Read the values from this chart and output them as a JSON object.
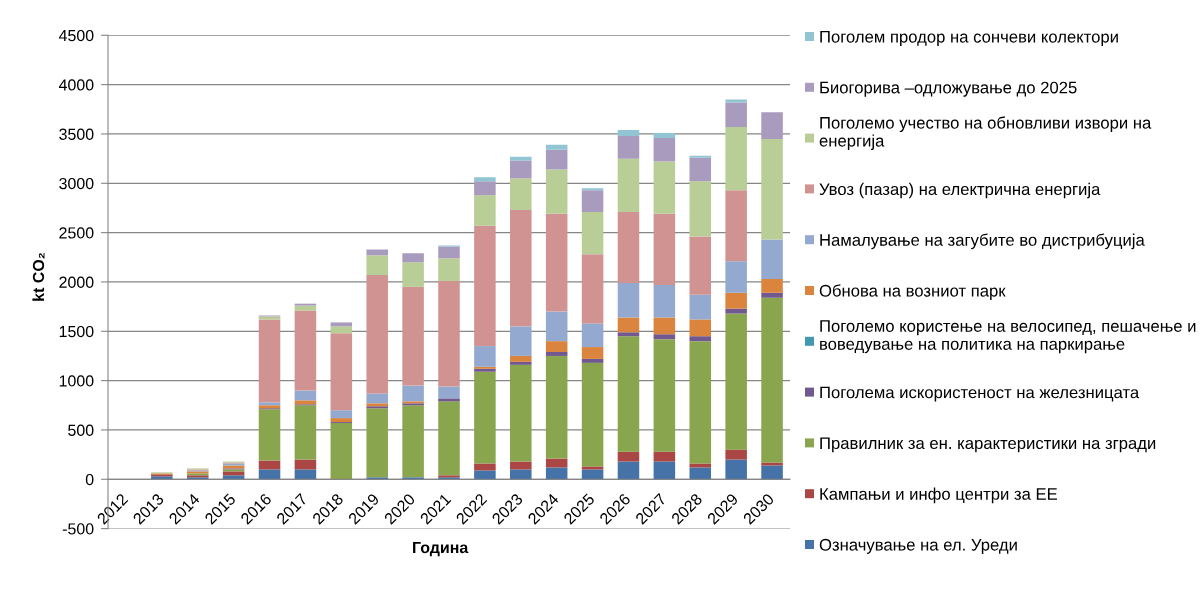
{
  "chart_data": {
    "type": "bar",
    "stacked": true,
    "categories": [
      "2012",
      "2013",
      "2014",
      "2015",
      "2016",
      "2017",
      "2018",
      "2019",
      "2020",
      "2021",
      "2022",
      "2023",
      "2024",
      "2025",
      "2026",
      "2027",
      "2028",
      "2029",
      "2030"
    ],
    "xlabel": "Година",
    "ylabel": "kt CO₂",
    "ylim": [
      -500,
      4500
    ],
    "yticks": [
      -500,
      0,
      500,
      1000,
      1500,
      2000,
      2500,
      3000,
      3500,
      4000,
      4500
    ],
    "grid": "y",
    "legend": "right",
    "series": [
      {
        "name": "Означување на ел. Уреди",
        "color": "#4572a7",
        "values": [
          0,
          30,
          20,
          40,
          100,
          100,
          0,
          20,
          20,
          20,
          90,
          100,
          120,
          100,
          180,
          180,
          120,
          200,
          140
        ]
      },
      {
        "name": "Кампањи и инфо центри за ЕЕ",
        "color": "#aa4643",
        "values": [
          0,
          20,
          20,
          40,
          90,
          100,
          0,
          0,
          0,
          20,
          70,
          80,
          90,
          30,
          100,
          100,
          40,
          100,
          30
        ]
      },
      {
        "name": "Правилник за ен. карактеристики на згради",
        "color": "#89a54e",
        "values": [
          0,
          0,
          20,
          20,
          520,
          550,
          570,
          700,
          730,
          750,
          930,
          980,
          1040,
          1050,
          1170,
          1140,
          1240,
          1380,
          1670
        ]
      },
      {
        "name": "Поголема искористеност на железницата",
        "color": "#71588f",
        "values": [
          0,
          0,
          0,
          10,
          10,
          10,
          10,
          20,
          20,
          30,
          30,
          30,
          40,
          40,
          40,
          50,
          50,
          50,
          50
        ]
      },
      {
        "name": "Поголемо користење на велосипед, пешачење и воведување на политика на паркирање",
        "color": "#4198af",
        "values": [
          0,
          0,
          0,
          0,
          0,
          0,
          0,
          0,
          0,
          0,
          0,
          0,
          0,
          0,
          0,
          0,
          0,
          0,
          0
        ]
      },
      {
        "name": "Обнова на возниот парк",
        "color": "#db843d",
        "values": [
          0,
          10,
          20,
          30,
          30,
          40,
          40,
          30,
          20,
          0,
          20,
          60,
          110,
          120,
          150,
          170,
          170,
          160,
          140
        ]
      },
      {
        "name": "Намалување на загубите во дистрибуција",
        "color": "#93a9cf",
        "values": [
          0,
          0,
          10,
          20,
          30,
          100,
          80,
          100,
          160,
          120,
          210,
          300,
          300,
          240,
          350,
          330,
          250,
          320,
          400
        ]
      },
      {
        "name": "Увоз (пазар) на електрична енергија",
        "color": "#d19392",
        "values": [
          0,
          0,
          10,
          10,
          840,
          810,
          780,
          1200,
          1000,
          1070,
          1220,
          1180,
          990,
          700,
          720,
          720,
          590,
          720,
          0
        ]
      },
      {
        "name": "Поголемо учество на обновливи извори на енергија",
        "color": "#b9cd96",
        "values": [
          0,
          10,
          10,
          10,
          30,
          50,
          70,
          200,
          250,
          230,
          310,
          320,
          450,
          430,
          540,
          530,
          560,
          640,
          1020
        ]
      },
      {
        "name": "Биогорива –одложување до 2025",
        "color": "#a99bbd",
        "values": [
          0,
          0,
          0,
          0,
          10,
          20,
          40,
          60,
          90,
          120,
          140,
          180,
          200,
          220,
          230,
          240,
          240,
          250,
          270
        ]
      },
      {
        "name": "Поголем продор на сончеви колектори",
        "color": "#92c5d4",
        "values": [
          0,
          0,
          0,
          0,
          0,
          0,
          0,
          0,
          0,
          10,
          40,
          40,
          50,
          20,
          60,
          50,
          20,
          30,
          0
        ]
      }
    ]
  }
}
